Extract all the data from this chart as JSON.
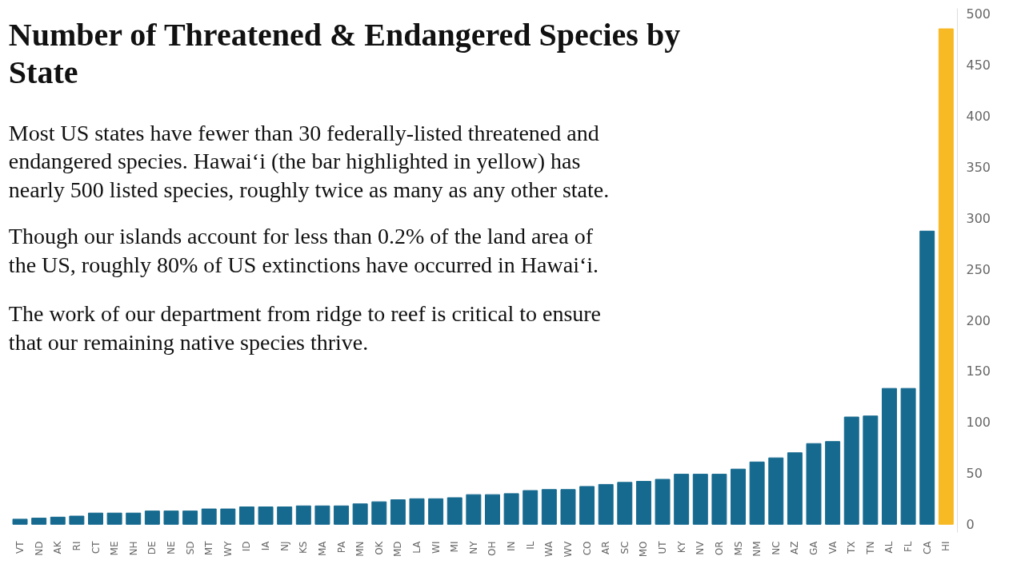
{
  "chart_data": {
    "type": "bar",
    "title": "Number of Threatened & Endangered Species by State",
    "annotations": [
      "Most US states have fewer than 30 federally-listed threatened and endangered species. Hawai‘i (the bar highlighted in yellow) has nearly 500 listed species, roughly twice as many as any other state.",
      "Though our islands account for less than 0.2% of the land area of the US, roughly 80% of US extinctions have occurred in Hawai‘i.",
      "The work of our department from ridge to reef is critical to ensure that our remaining native species thrive."
    ],
    "categories": [
      "VT",
      "ND",
      "AK",
      "RI",
      "CT",
      "ME",
      "NH",
      "DE",
      "NE",
      "SD",
      "MT",
      "WY",
      "ID",
      "IA",
      "NJ",
      "KS",
      "MA",
      "PA",
      "MN",
      "OK",
      "MD",
      "LA",
      "WI",
      "MI",
      "NY",
      "OH",
      "IN",
      "IL",
      "WA",
      "WV",
      "CO",
      "AR",
      "SC",
      "MO",
      "UT",
      "KY",
      "NV",
      "OR",
      "MS",
      "NM",
      "NC",
      "AZ",
      "GA",
      "VA",
      "TX",
      "TN",
      "AL",
      "FL",
      "CA",
      "HI"
    ],
    "values": [
      5,
      6,
      7,
      8,
      11,
      11,
      11,
      13,
      13,
      13,
      15,
      15,
      17,
      17,
      17,
      18,
      18,
      18,
      20,
      22,
      24,
      25,
      25,
      26,
      29,
      29,
      30,
      33,
      34,
      34,
      37,
      39,
      41,
      42,
      44,
      49,
      49,
      49,
      54,
      61,
      65,
      70,
      79,
      81,
      105,
      106,
      133,
      133,
      287,
      485
    ],
    "colors": [
      "#166a8f",
      "#166a8f",
      "#166a8f",
      "#166a8f",
      "#166a8f",
      "#166a8f",
      "#166a8f",
      "#166a8f",
      "#166a8f",
      "#166a8f",
      "#166a8f",
      "#166a8f",
      "#166a8f",
      "#166a8f",
      "#166a8f",
      "#166a8f",
      "#166a8f",
      "#166a8f",
      "#166a8f",
      "#166a8f",
      "#166a8f",
      "#166a8f",
      "#166a8f",
      "#166a8f",
      "#166a8f",
      "#166a8f",
      "#166a8f",
      "#166a8f",
      "#166a8f",
      "#166a8f",
      "#166a8f",
      "#166a8f",
      "#166a8f",
      "#166a8f",
      "#166a8f",
      "#166a8f",
      "#166a8f",
      "#166a8f",
      "#166a8f",
      "#166a8f",
      "#166a8f",
      "#166a8f",
      "#166a8f",
      "#166a8f",
      "#166a8f",
      "#166a8f",
      "#166a8f",
      "#166a8f",
      "#166a8f",
      "#f7b924"
    ],
    "ylim": [
      -8,
      505
    ],
    "yticks": [
      0,
      50,
      100,
      150,
      200,
      250,
      300,
      350,
      400,
      450,
      500
    ]
  }
}
